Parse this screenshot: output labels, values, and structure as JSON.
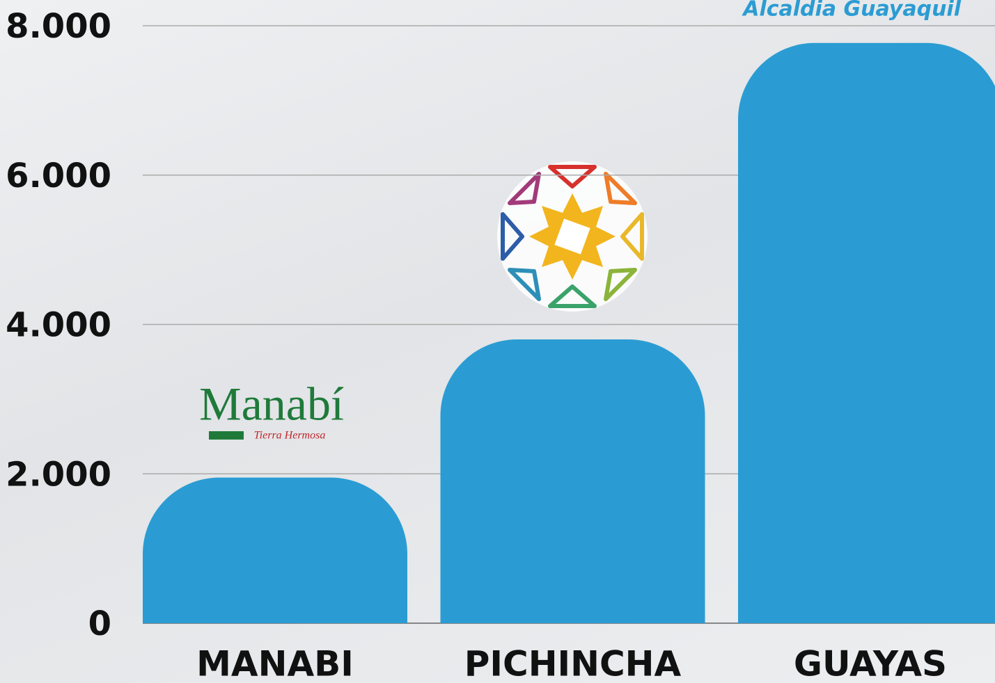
{
  "chart_data": {
    "type": "bar",
    "categories": [
      "MANABI",
      "PICHINCHA",
      "GUAYAS"
    ],
    "values": [
      1950,
      3800,
      7770
    ],
    "color": "#2b9cd3",
    "ylim": [
      0,
      8000
    ],
    "yticks": [
      0,
      {
        "value": 2000,
        "label": "2.000"
      },
      {
        "value": 4000,
        "label": "4.000"
      },
      {
        "value": 6000,
        "label": "6.000"
      },
      {
        "value": 8000,
        "label": "8.000"
      }
    ],
    "grid": true,
    "annotations": [
      "Manabí",
      "Tierra Hermosa",
      "Alcaldia Guayaquil"
    ]
  }
}
